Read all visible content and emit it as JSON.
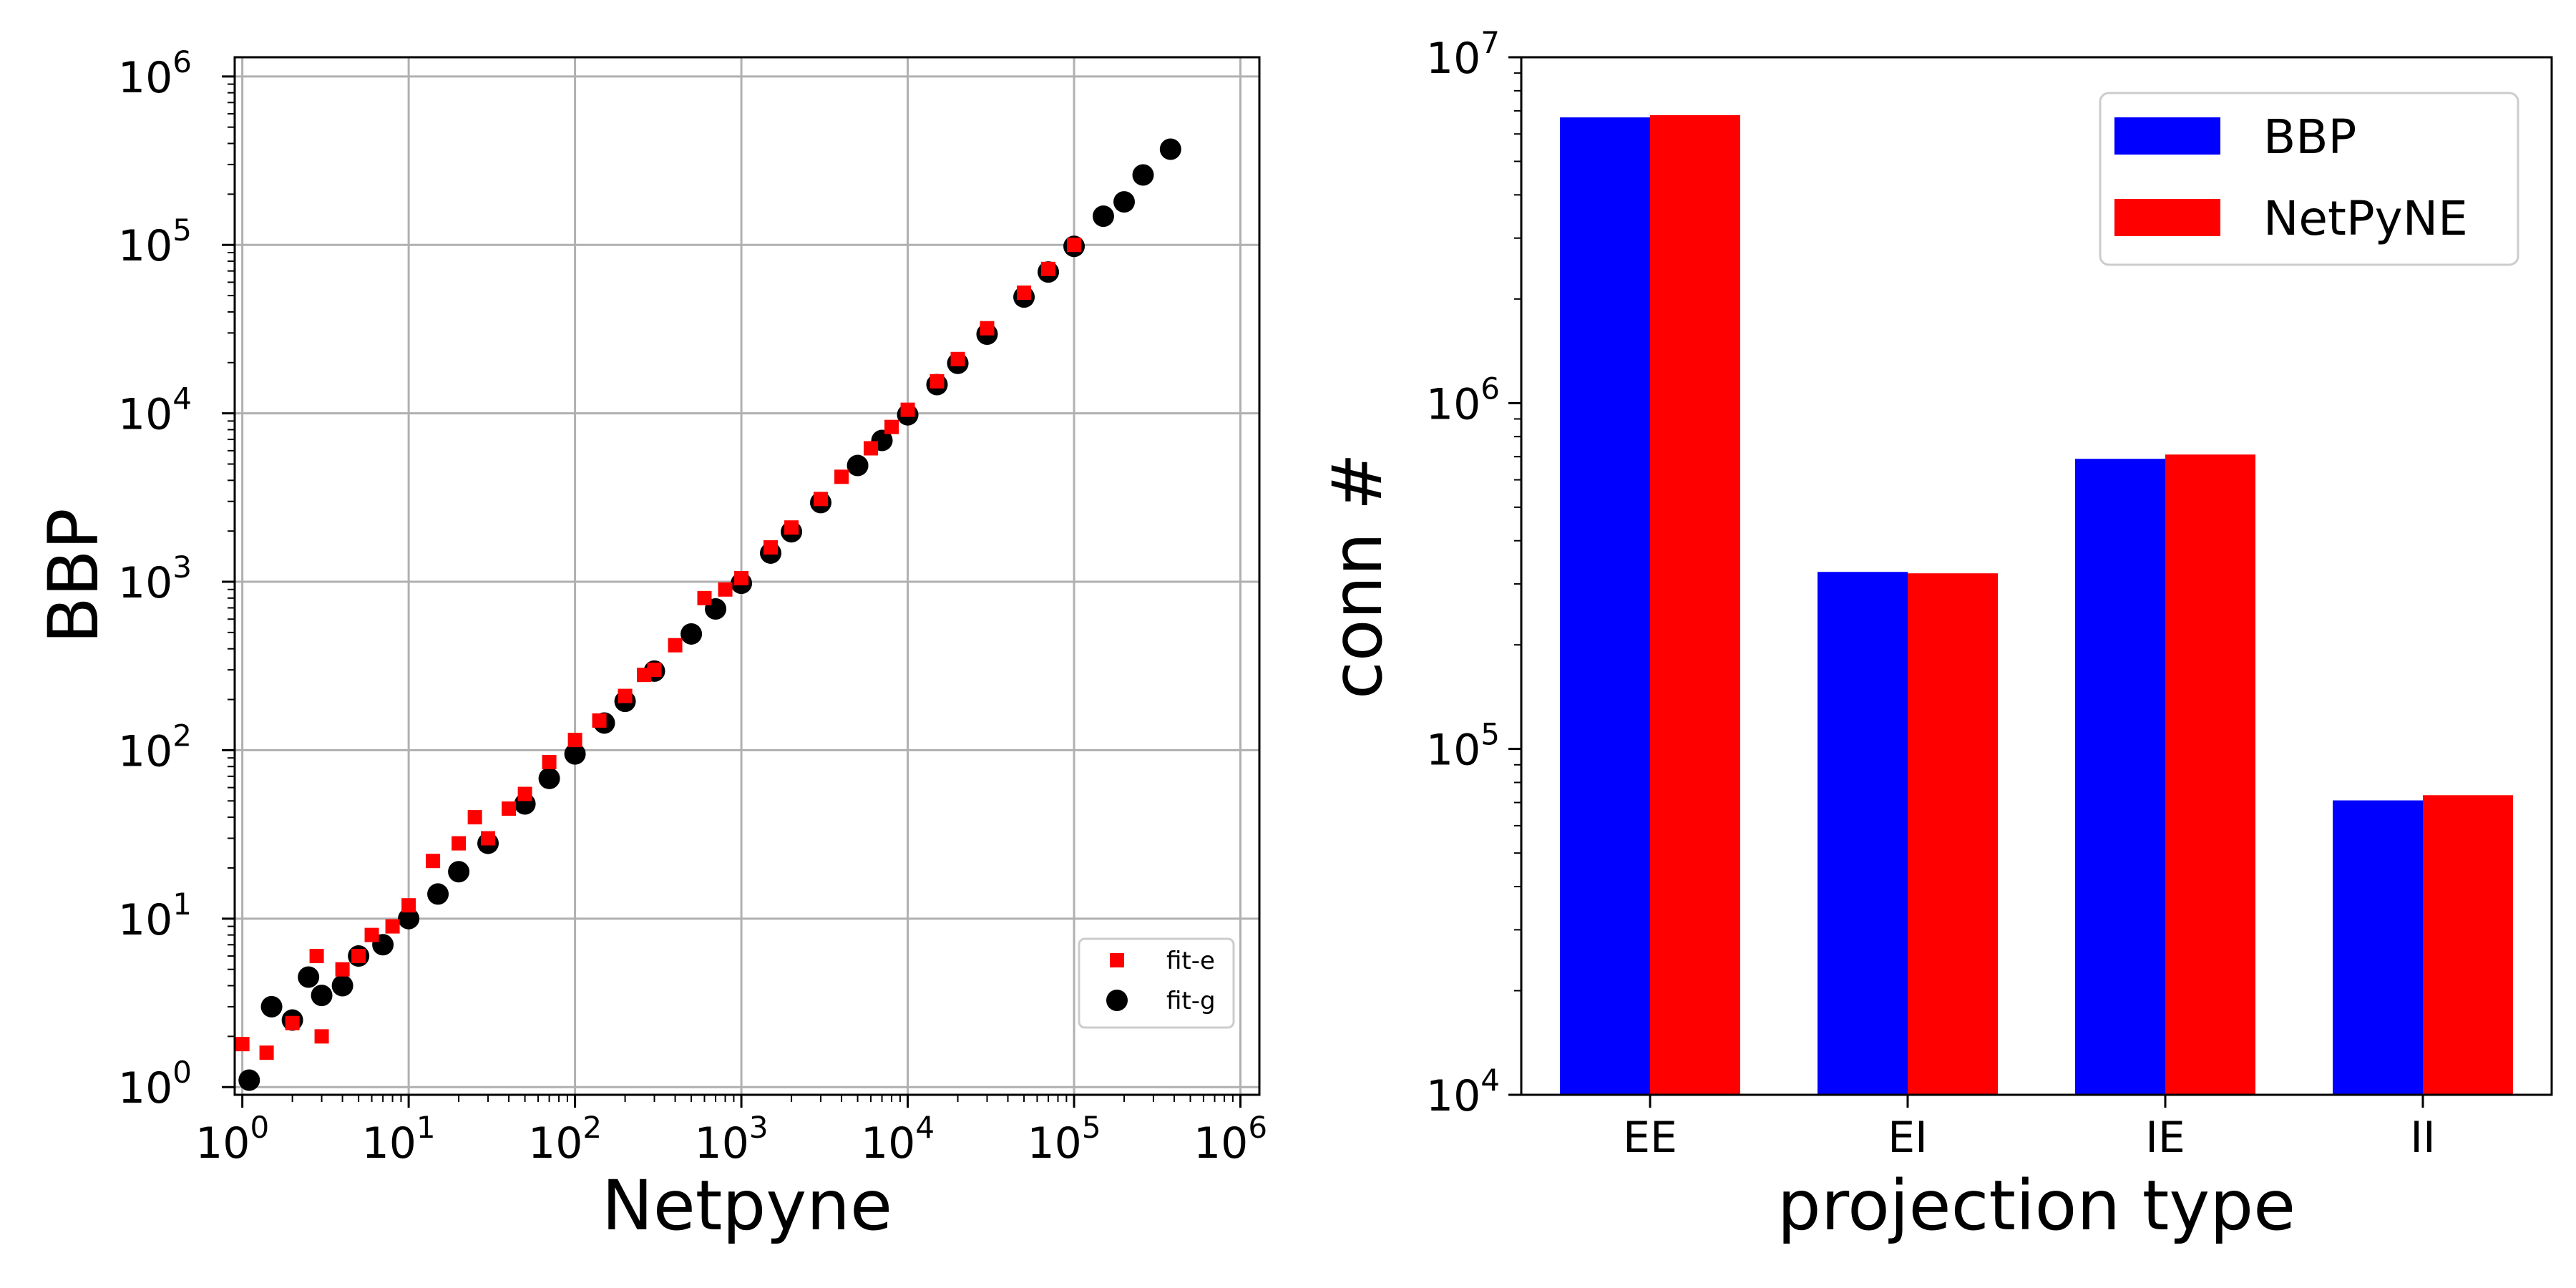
{
  "chart_data": [
    {
      "type": "scatter",
      "xlabel": "Netpyne",
      "ylabel": "BBP",
      "xscale": "log",
      "yscale": "log",
      "xlim": [
        1,
        1000000
      ],
      "ylim": [
        1,
        1000000
      ],
      "x_ticks": [
        "10^0",
        "10^1",
        "10^2",
        "10^3",
        "10^4",
        "10^5",
        "10^6"
      ],
      "y_ticks": [
        "10^0",
        "10^1",
        "10^2",
        "10^3",
        "10^4",
        "10^5",
        "10^6"
      ],
      "grid": true,
      "legend_position": "bottom-right",
      "series": [
        {
          "name": "fit-e",
          "marker": "square",
          "color": "#ff0000",
          "x": [
            1.0,
            1.4,
            2.0,
            2.8,
            3.0,
            4.0,
            5.0,
            6.0,
            8.0,
            10,
            14,
            20,
            25,
            30,
            40,
            50,
            70,
            100,
            140,
            200,
            260,
            300,
            400,
            600,
            800,
            1000,
            1500,
            2000,
            3000,
            4000,
            6000,
            8000,
            10000,
            15000,
            20000,
            30000,
            50000,
            70000,
            100000
          ],
          "y": [
            1.8,
            1.6,
            2.4,
            6.0,
            2.0,
            5.0,
            6.0,
            8.0,
            9.0,
            12,
            22,
            28,
            40,
            30,
            45,
            55,
            85,
            115,
            150,
            210,
            280,
            300,
            420,
            800,
            900,
            1050,
            1600,
            2100,
            3100,
            4200,
            6200,
            8300,
            10500,
            15500,
            21000,
            32000,
            52000,
            72000,
            100000
          ]
        },
        {
          "name": "fit-g",
          "marker": "circle",
          "color": "#000000",
          "x": [
            1.1,
            1.5,
            2.0,
            2.5,
            3.0,
            4.0,
            5.0,
            7.0,
            10,
            15,
            20,
            30,
            50,
            70,
            100,
            150,
            200,
            300,
            500,
            700,
            1000,
            1500,
            2000,
            3000,
            5000,
            7000,
            10000,
            15000,
            20000,
            30000,
            50000,
            70000,
            100000,
            150000,
            200000,
            260000,
            380000
          ],
          "y": [
            1.1,
            3.0,
            2.5,
            4.5,
            3.5,
            4.0,
            6.0,
            7.0,
            10,
            14,
            19,
            28,
            48,
            68,
            95,
            145,
            195,
            295,
            490,
            690,
            980,
            1480,
            1980,
            2950,
            4900,
            6900,
            9800,
            14800,
            19800,
            29500,
            49000,
            69000,
            98000,
            148000,
            180000,
            260000,
            370000
          ]
        }
      ]
    },
    {
      "type": "bar",
      "xlabel": "projection type",
      "ylabel": "conn #",
      "yscale": "log",
      "ylim": [
        10000,
        10000000
      ],
      "y_ticks": [
        "10^4",
        "10^5",
        "10^6",
        "10^7"
      ],
      "categories": [
        "EE",
        "EI",
        "IE",
        "II"
      ],
      "legend_position": "top-right",
      "series": [
        {
          "name": "BBP",
          "color": "#0000ff",
          "values": [
            6700000,
            325000,
            690000,
            71000
          ]
        },
        {
          "name": "NetPyNE",
          "color": "#ff0000",
          "values": [
            6800000,
            322000,
            710000,
            73500
          ]
        }
      ]
    }
  ]
}
